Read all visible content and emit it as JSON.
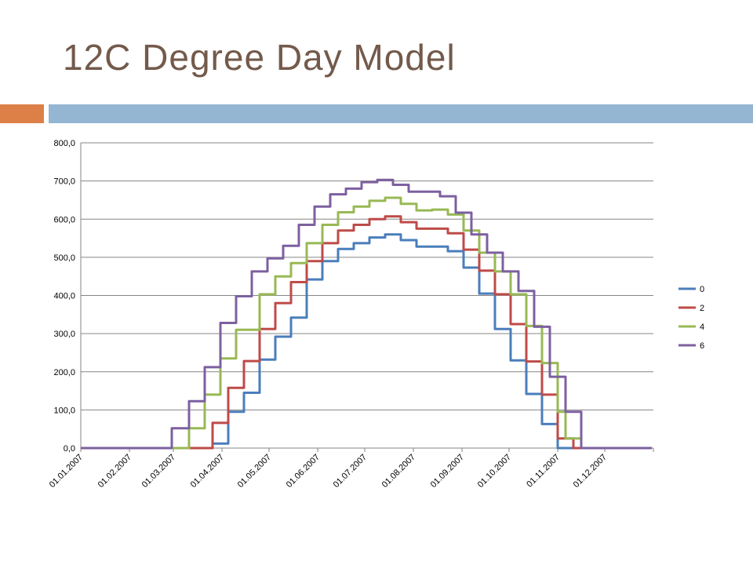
{
  "slide": {
    "title": "12C Degree Day Model",
    "colors": {
      "title": "#735a4b",
      "accent_orange": "#dd8047",
      "accent_blue": "#94b6d2"
    }
  },
  "chart_data": {
    "type": "line",
    "step": true,
    "title": "",
    "xlabel": "",
    "ylabel": "",
    "ylim": [
      0,
      800
    ],
    "y_ticks": [
      "0,0",
      "100,0",
      "200,0",
      "300,0",
      "400,0",
      "500,0",
      "600,0",
      "700,0",
      "800,0"
    ],
    "x_tick_labels": [
      "01.01.2007",
      "01.02.2007",
      "01.03.2007",
      "01.04.2007",
      "01.05.2007",
      "01.06.2007",
      "01.07.2007",
      "01.08.2007",
      "01.09.2007",
      "01.10.2007",
      "01.11.2007",
      "01.12.2007"
    ],
    "grid": true,
    "legend_position": "right",
    "series": [
      {
        "name": "0",
        "color": "#4a7ebb",
        "points": [
          [
            "2007-01-01",
            0
          ],
          [
            "2007-03-26",
            0
          ],
          [
            "2007-03-26",
            12
          ],
          [
            "2007-04-05",
            12
          ],
          [
            "2007-04-05",
            95
          ],
          [
            "2007-04-15",
            95
          ],
          [
            "2007-04-15",
            145
          ],
          [
            "2007-04-25",
            145
          ],
          [
            "2007-04-25",
            232
          ],
          [
            "2007-05-05",
            232
          ],
          [
            "2007-05-05",
            292
          ],
          [
            "2007-05-15",
            292
          ],
          [
            "2007-05-15",
            342
          ],
          [
            "2007-05-25",
            342
          ],
          [
            "2007-05-25",
            442
          ],
          [
            "2007-06-04",
            442
          ],
          [
            "2007-06-04",
            490
          ],
          [
            "2007-06-14",
            490
          ],
          [
            "2007-06-14",
            522
          ],
          [
            "2007-06-24",
            522
          ],
          [
            "2007-06-24",
            537
          ],
          [
            "2007-07-04",
            537
          ],
          [
            "2007-07-04",
            552
          ],
          [
            "2007-07-14",
            552
          ],
          [
            "2007-07-14",
            560
          ],
          [
            "2007-07-24",
            560
          ],
          [
            "2007-07-24",
            545
          ],
          [
            "2007-08-03",
            545
          ],
          [
            "2007-08-03",
            528
          ],
          [
            "2007-08-23",
            528
          ],
          [
            "2007-08-23",
            516
          ],
          [
            "2007-09-02",
            516
          ],
          [
            "2007-09-02",
            473
          ],
          [
            "2007-09-12",
            473
          ],
          [
            "2007-09-12",
            405
          ],
          [
            "2007-09-22",
            405
          ],
          [
            "2007-09-22",
            312
          ],
          [
            "2007-10-02",
            312
          ],
          [
            "2007-10-02",
            230
          ],
          [
            "2007-10-12",
            230
          ],
          [
            "2007-10-12",
            142
          ],
          [
            "2007-10-22",
            142
          ],
          [
            "2007-10-22",
            63
          ],
          [
            "2007-11-01",
            63
          ],
          [
            "2007-11-01",
            0
          ],
          [
            "2007-12-31",
            0
          ]
        ]
      },
      {
        "name": "2",
        "color": "#be4b48",
        "points": [
          [
            "2007-01-01",
            0
          ],
          [
            "2007-03-26",
            0
          ],
          [
            "2007-03-26",
            66
          ],
          [
            "2007-04-05",
            66
          ],
          [
            "2007-04-05",
            158
          ],
          [
            "2007-04-15",
            158
          ],
          [
            "2007-04-15",
            228
          ],
          [
            "2007-04-25",
            228
          ],
          [
            "2007-04-25",
            312
          ],
          [
            "2007-05-05",
            312
          ],
          [
            "2007-05-05",
            380
          ],
          [
            "2007-05-15",
            380
          ],
          [
            "2007-05-15",
            435
          ],
          [
            "2007-05-25",
            435
          ],
          [
            "2007-05-25",
            490
          ],
          [
            "2007-06-04",
            490
          ],
          [
            "2007-06-04",
            537
          ],
          [
            "2007-06-14",
            537
          ],
          [
            "2007-06-14",
            570
          ],
          [
            "2007-06-24",
            570
          ],
          [
            "2007-06-24",
            585
          ],
          [
            "2007-07-04",
            585
          ],
          [
            "2007-07-04",
            600
          ],
          [
            "2007-07-14",
            600
          ],
          [
            "2007-07-14",
            607
          ],
          [
            "2007-07-24",
            607
          ],
          [
            "2007-07-24",
            592
          ],
          [
            "2007-08-03",
            592
          ],
          [
            "2007-08-03",
            575
          ],
          [
            "2007-08-23",
            575
          ],
          [
            "2007-08-23",
            563
          ],
          [
            "2007-09-02",
            563
          ],
          [
            "2007-09-02",
            520
          ],
          [
            "2007-09-12",
            520
          ],
          [
            "2007-09-12",
            465
          ],
          [
            "2007-09-22",
            465
          ],
          [
            "2007-09-22",
            403
          ],
          [
            "2007-10-02",
            403
          ],
          [
            "2007-10-02",
            325
          ],
          [
            "2007-10-12",
            325
          ],
          [
            "2007-10-12",
            227
          ],
          [
            "2007-10-22",
            227
          ],
          [
            "2007-10-22",
            140
          ],
          [
            "2007-11-01",
            140
          ],
          [
            "2007-11-01",
            25
          ],
          [
            "2007-11-11",
            25
          ],
          [
            "2007-11-11",
            0
          ],
          [
            "2007-12-31",
            0
          ]
        ]
      },
      {
        "name": "4",
        "color": "#98b954",
        "points": [
          [
            "2007-01-01",
            0
          ],
          [
            "2007-03-11",
            0
          ],
          [
            "2007-03-11",
            52
          ],
          [
            "2007-03-21",
            52
          ],
          [
            "2007-03-21",
            140
          ],
          [
            "2007-03-31",
            140
          ],
          [
            "2007-03-31",
            235
          ],
          [
            "2007-04-10",
            235
          ],
          [
            "2007-04-10",
            310
          ],
          [
            "2007-04-25",
            310
          ],
          [
            "2007-04-25",
            403
          ],
          [
            "2007-05-05",
            403
          ],
          [
            "2007-05-05",
            450
          ],
          [
            "2007-05-15",
            450
          ],
          [
            "2007-05-15",
            485
          ],
          [
            "2007-05-25",
            485
          ],
          [
            "2007-05-25",
            537
          ],
          [
            "2007-06-04",
            537
          ],
          [
            "2007-06-04",
            585
          ],
          [
            "2007-06-14",
            585
          ],
          [
            "2007-06-14",
            618
          ],
          [
            "2007-06-24",
            618
          ],
          [
            "2007-06-24",
            633
          ],
          [
            "2007-07-04",
            633
          ],
          [
            "2007-07-04",
            648
          ],
          [
            "2007-07-14",
            648
          ],
          [
            "2007-07-14",
            656
          ],
          [
            "2007-07-24",
            656
          ],
          [
            "2007-07-24",
            640
          ],
          [
            "2007-08-03",
            640
          ],
          [
            "2007-08-03",
            623
          ],
          [
            "2007-08-13",
            623
          ],
          [
            "2007-08-13",
            625
          ],
          [
            "2007-08-23",
            625
          ],
          [
            "2007-08-23",
            612
          ],
          [
            "2007-09-02",
            612
          ],
          [
            "2007-09-02",
            570
          ],
          [
            "2007-09-12",
            570
          ],
          [
            "2007-09-12",
            512
          ],
          [
            "2007-09-22",
            512
          ],
          [
            "2007-09-22",
            463
          ],
          [
            "2007-10-02",
            463
          ],
          [
            "2007-10-02",
            403
          ],
          [
            "2007-10-12",
            403
          ],
          [
            "2007-10-12",
            320
          ],
          [
            "2007-10-22",
            320
          ],
          [
            "2007-10-22",
            223
          ],
          [
            "2007-11-01",
            223
          ],
          [
            "2007-11-01",
            95
          ],
          [
            "2007-11-06",
            95
          ],
          [
            "2007-11-06",
            25
          ],
          [
            "2007-11-16",
            25
          ],
          [
            "2007-11-16",
            0
          ],
          [
            "2007-12-31",
            0
          ]
        ]
      },
      {
        "name": "6",
        "color": "#7d60a0",
        "points": [
          [
            "2007-01-01",
            0
          ],
          [
            "2007-02-28",
            0
          ],
          [
            "2007-02-28",
            52
          ],
          [
            "2007-03-11",
            52
          ],
          [
            "2007-03-11",
            123
          ],
          [
            "2007-03-21",
            123
          ],
          [
            "2007-03-21",
            212
          ],
          [
            "2007-03-31",
            212
          ],
          [
            "2007-03-31",
            328
          ],
          [
            "2007-04-10",
            328
          ],
          [
            "2007-04-10",
            398
          ],
          [
            "2007-04-20",
            398
          ],
          [
            "2007-04-20",
            463
          ],
          [
            "2007-04-30",
            463
          ],
          [
            "2007-04-30",
            497
          ],
          [
            "2007-05-10",
            497
          ],
          [
            "2007-05-10",
            530
          ],
          [
            "2007-05-20",
            530
          ],
          [
            "2007-05-20",
            585
          ],
          [
            "2007-05-30",
            585
          ],
          [
            "2007-05-30",
            633
          ],
          [
            "2007-06-09",
            633
          ],
          [
            "2007-06-09",
            665
          ],
          [
            "2007-06-19",
            665
          ],
          [
            "2007-06-19",
            680
          ],
          [
            "2007-06-29",
            680
          ],
          [
            "2007-06-29",
            697
          ],
          [
            "2007-07-09",
            697
          ],
          [
            "2007-07-09",
            703
          ],
          [
            "2007-07-19",
            703
          ],
          [
            "2007-07-19",
            690
          ],
          [
            "2007-07-29",
            690
          ],
          [
            "2007-07-29",
            672
          ],
          [
            "2007-08-18",
            672
          ],
          [
            "2007-08-18",
            660
          ],
          [
            "2007-08-28",
            660
          ],
          [
            "2007-08-28",
            617
          ],
          [
            "2007-09-07",
            617
          ],
          [
            "2007-09-07",
            560
          ],
          [
            "2007-09-17",
            560
          ],
          [
            "2007-09-17",
            512
          ],
          [
            "2007-09-27",
            512
          ],
          [
            "2007-09-27",
            463
          ],
          [
            "2007-10-07",
            463
          ],
          [
            "2007-10-07",
            412
          ],
          [
            "2007-10-17",
            412
          ],
          [
            "2007-10-17",
            318
          ],
          [
            "2007-10-27",
            318
          ],
          [
            "2007-10-27",
            187
          ],
          [
            "2007-11-06",
            187
          ],
          [
            "2007-11-06",
            95
          ],
          [
            "2007-11-16",
            95
          ],
          [
            "2007-11-16",
            0
          ],
          [
            "2007-12-31",
            0
          ]
        ]
      }
    ]
  }
}
